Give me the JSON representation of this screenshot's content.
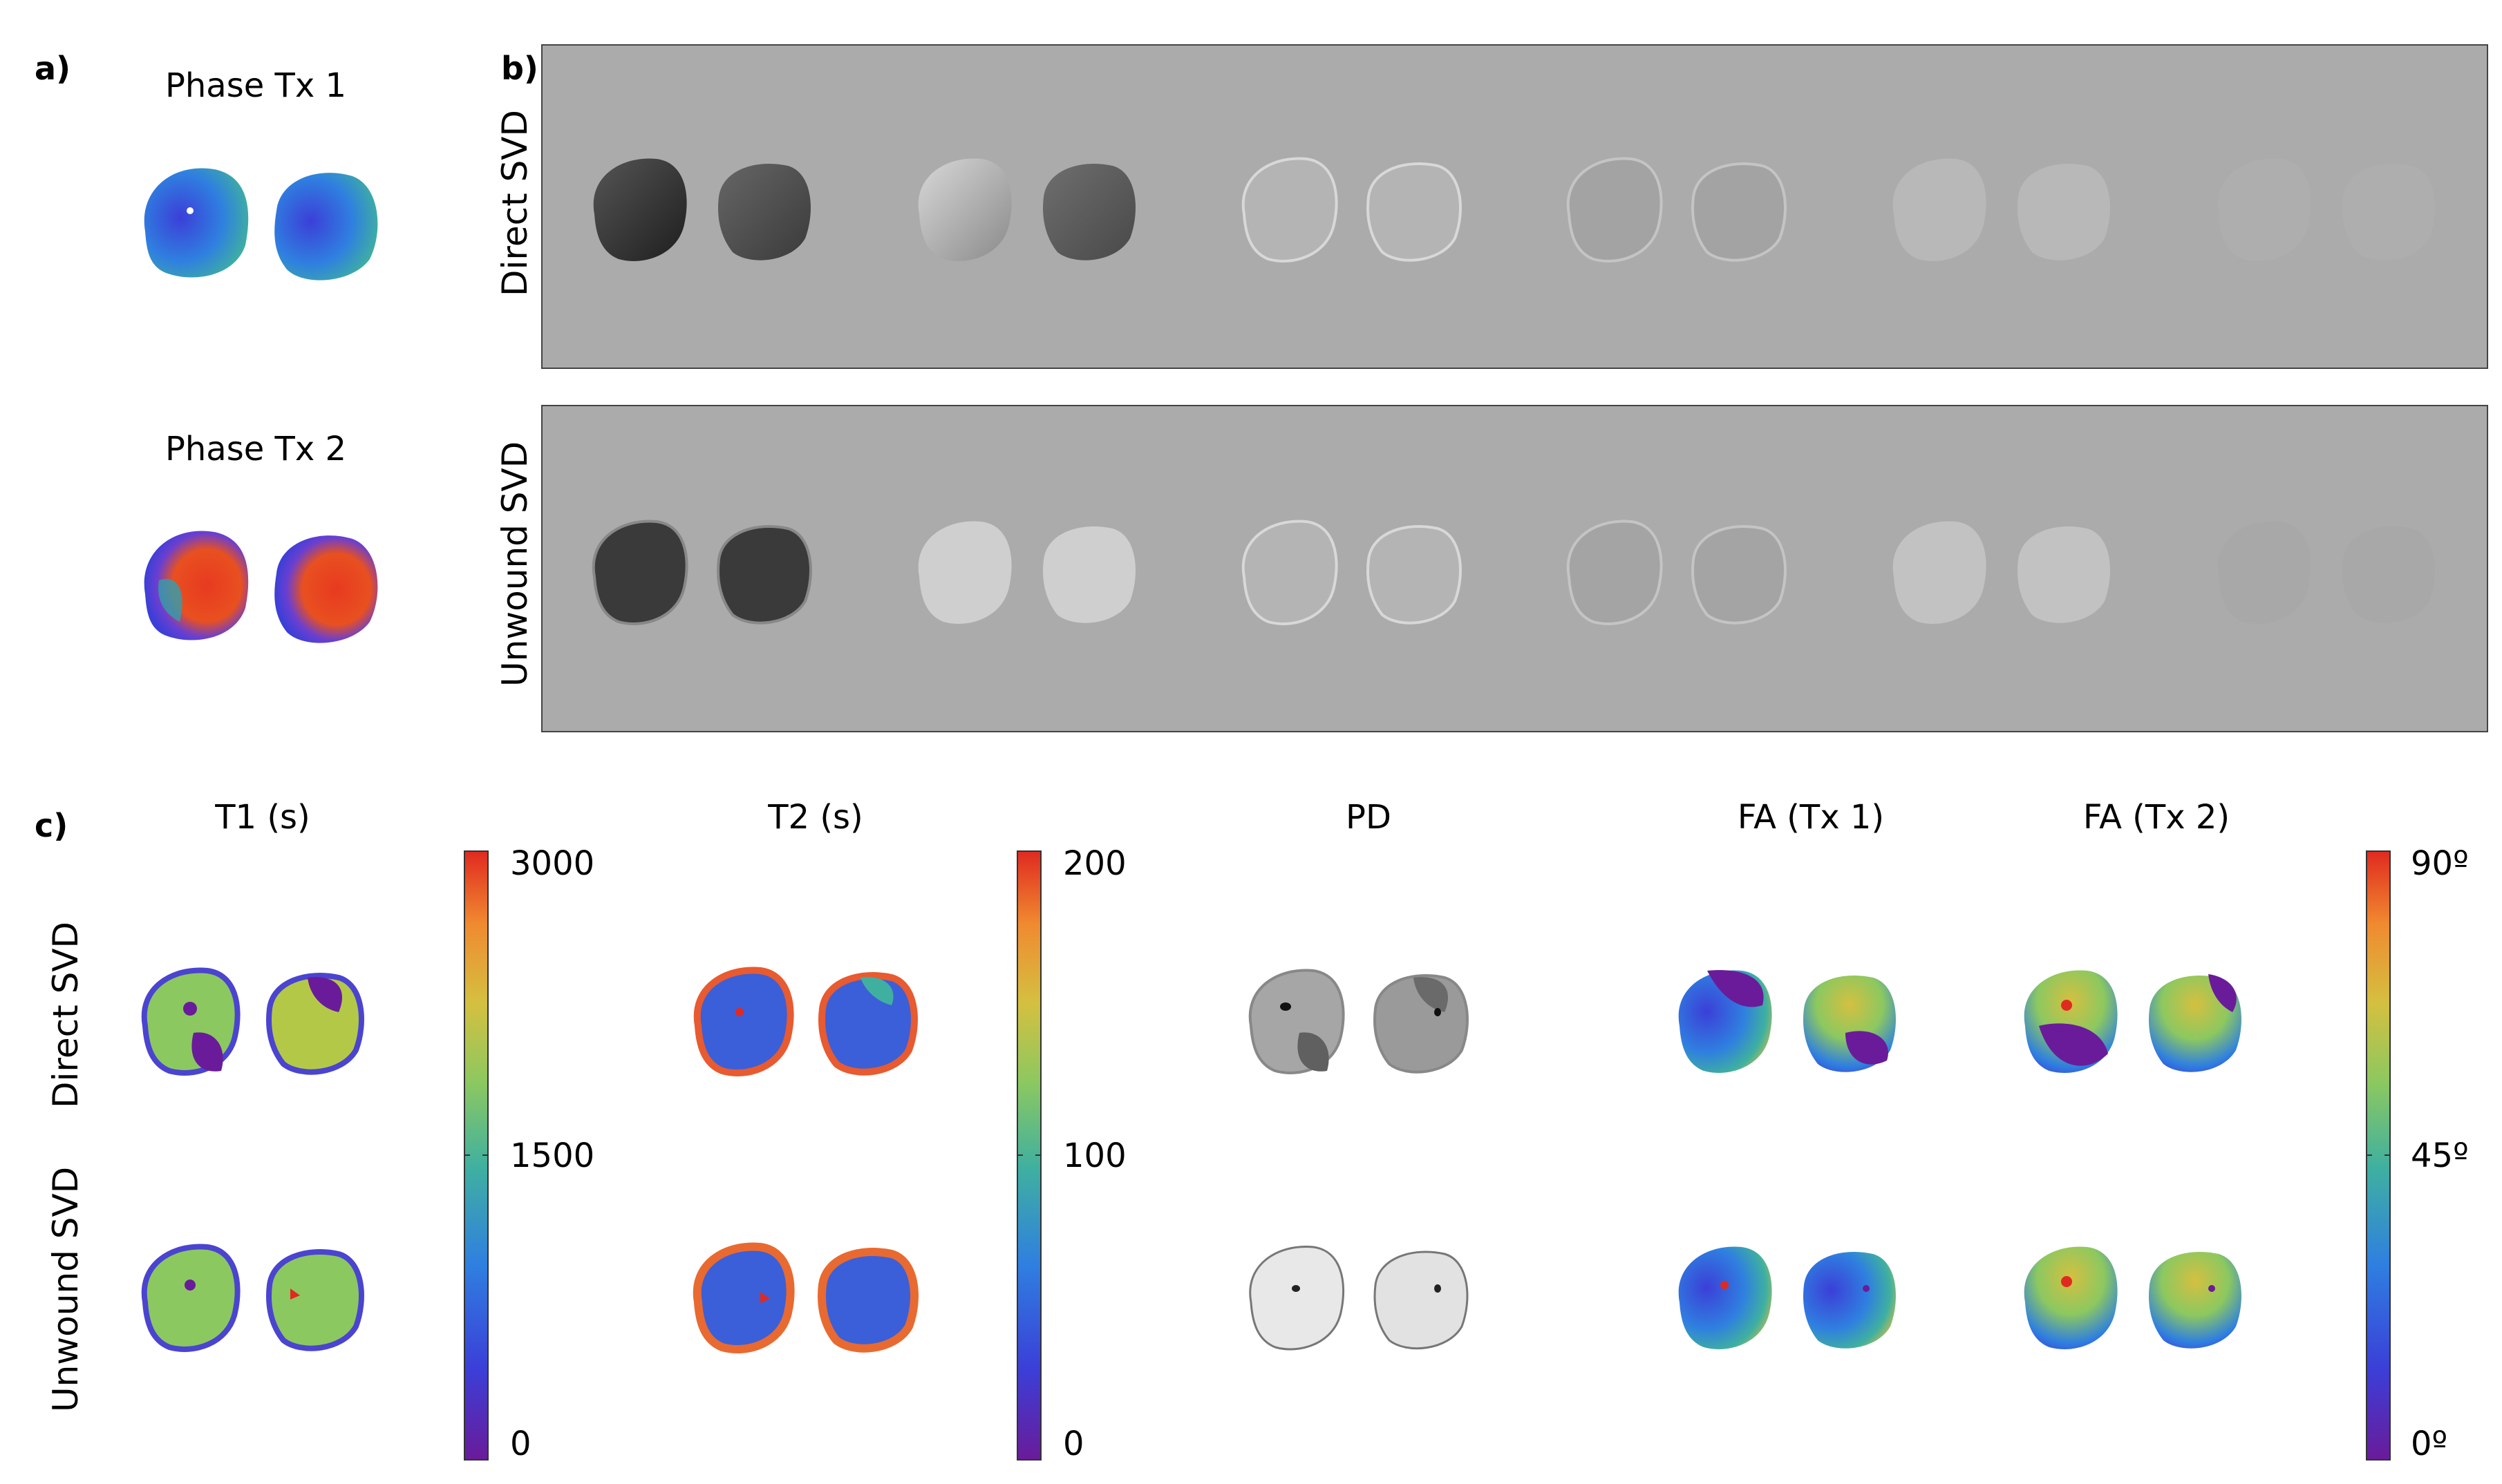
{
  "panels": {
    "a": "a)",
    "b": "b)",
    "c": "c)"
  },
  "panel_a": {
    "title_1": "Phase Tx 1",
    "title_2": "Phase Tx 2"
  },
  "panel_b": {
    "row_1": "Direct SVD",
    "row_2": "Unwound SVD"
  },
  "panel_c": {
    "titles": [
      "T1 (s)",
      "T2 (s)",
      "PD",
      "FA (Tx 1)",
      "FA (Tx 2)"
    ],
    "row_1": "Direct SVD",
    "row_2": "Unwound SVD",
    "t1_colorbar": {
      "top": "3000",
      "mid": "1500",
      "bottom": "0"
    },
    "t2_colorbar": {
      "top": "200",
      "mid": "100",
      "bottom": "0"
    },
    "fa_colorbar": {
      "top": "90º",
      "mid": "45º",
      "bottom": "0º"
    }
  },
  "colors": {
    "background_box": "#ababab",
    "colormap": [
      "#6a1b9a",
      "#3b3fd8",
      "#2f7fe0",
      "#3fb0a0",
      "#8cc860",
      "#d4c040",
      "#f08a30",
      "#e02a20"
    ]
  }
}
